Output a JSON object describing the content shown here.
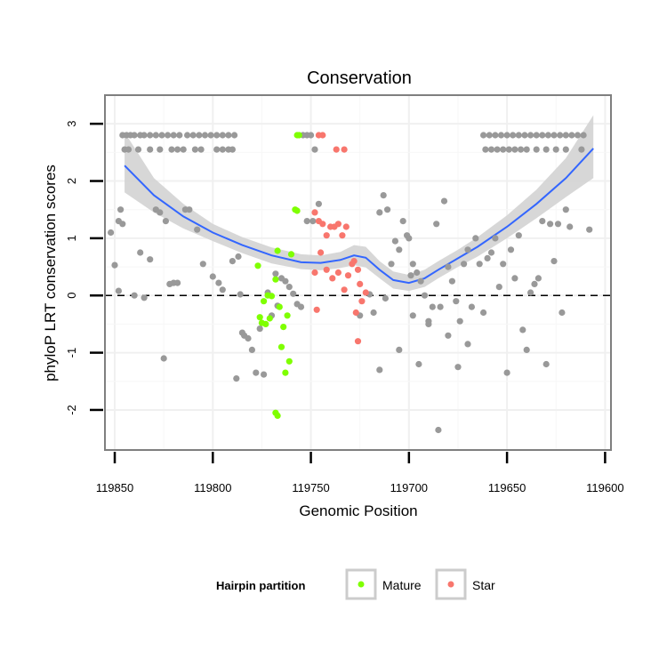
{
  "chart_data": {
    "type": "scatter",
    "title": "Conservation",
    "xlabel": "Genomic Position",
    "ylabel": "phyloP LRT conservation scores",
    "xlim": [
      119855,
      119597
    ],
    "ylim": [
      -2.7,
      3.5
    ],
    "x_reversed": true,
    "x_ticks": [
      119850,
      119800,
      119750,
      119700,
      119650,
      119600
    ],
    "y_ticks": [
      -2,
      -1,
      0,
      1,
      2,
      3
    ],
    "reference_line": {
      "y": 0,
      "style": "dashed"
    },
    "legend": {
      "title": "Hairpin partition",
      "position": "bottom",
      "entries": [
        {
          "label": "Mature",
          "color": "#7FFF00"
        },
        {
          "label": "Star",
          "color": "#F8766D"
        }
      ]
    },
    "colors": {
      "other": "#999999",
      "mature": "#7FFF00",
      "star": "#F8766D",
      "smooth": "#3366FF",
      "band": "#d3d3d3"
    },
    "smooth": {
      "x": [
        119845,
        119830,
        119815,
        119800,
        119785,
        119770,
        119755,
        119745,
        119735,
        119728,
        119722,
        119715,
        119708,
        119700,
        119692,
        119685,
        119675,
        119665,
        119650,
        119635,
        119620,
        119606
      ],
      "y": [
        2.27,
        1.75,
        1.38,
        1.1,
        0.88,
        0.7,
        0.58,
        0.57,
        0.62,
        0.7,
        0.66,
        0.45,
        0.27,
        0.22,
        0.3,
        0.45,
        0.65,
        0.85,
        1.2,
        1.6,
        2.05,
        2.57
      ],
      "lower": [
        1.8,
        1.45,
        1.17,
        0.95,
        0.74,
        0.56,
        0.46,
        0.44,
        0.48,
        0.53,
        0.49,
        0.3,
        0.12,
        0.08,
        0.15,
        0.3,
        0.5,
        0.68,
        1.0,
        1.35,
        1.72,
        2.05
      ],
      "upper": [
        2.85,
        2.05,
        1.6,
        1.25,
        1.02,
        0.84,
        0.72,
        0.7,
        0.76,
        0.88,
        0.85,
        0.6,
        0.42,
        0.36,
        0.45,
        0.6,
        0.8,
        1.02,
        1.4,
        1.85,
        2.4,
        3.15
      ]
    },
    "series": [
      {
        "name": "Other",
        "color": "#999999",
        "points": [
          [
            119846,
            2.8
          ],
          [
            119844,
            2.8
          ],
          [
            119842,
            2.8
          ],
          [
            119840,
            2.8
          ],
          [
            119837,
            2.8
          ],
          [
            119835,
            2.8
          ],
          [
            119832,
            2.8
          ],
          [
            119829,
            2.8
          ],
          [
            119826,
            2.8
          ],
          [
            119823,
            2.8
          ],
          [
            119820,
            2.8
          ],
          [
            119817,
            2.8
          ],
          [
            119813,
            2.8
          ],
          [
            119810,
            2.8
          ],
          [
            119807,
            2.8
          ],
          [
            119804,
            2.8
          ],
          [
            119801,
            2.8
          ],
          [
            119798,
            2.8
          ],
          [
            119795,
            2.8
          ],
          [
            119792,
            2.8
          ],
          [
            119789,
            2.8
          ],
          [
            119845,
            2.55
          ],
          [
            119843,
            2.55
          ],
          [
            119838,
            2.55
          ],
          [
            119832,
            2.55
          ],
          [
            119827,
            2.55
          ],
          [
            119821,
            2.55
          ],
          [
            119818,
            2.55
          ],
          [
            119815,
            2.55
          ],
          [
            119809,
            2.55
          ],
          [
            119806,
            2.55
          ],
          [
            119798,
            2.55
          ],
          [
            119795,
            2.55
          ],
          [
            119792,
            2.55
          ],
          [
            119790,
            2.55
          ],
          [
            119754,
            2.8
          ],
          [
            119752,
            2.8
          ],
          [
            119750,
            2.8
          ],
          [
            119748,
            2.55
          ],
          [
            119662,
            2.8
          ],
          [
            119659,
            2.8
          ],
          [
            119656,
            2.8
          ],
          [
            119653,
            2.8
          ],
          [
            119650,
            2.8
          ],
          [
            119647,
            2.8
          ],
          [
            119644,
            2.8
          ],
          [
            119641,
            2.8
          ],
          [
            119638,
            2.8
          ],
          [
            119635,
            2.8
          ],
          [
            119632,
            2.8
          ],
          [
            119629,
            2.8
          ],
          [
            119626,
            2.8
          ],
          [
            119623,
            2.8
          ],
          [
            119620,
            2.8
          ],
          [
            119617,
            2.8
          ],
          [
            119614,
            2.8
          ],
          [
            119611,
            2.8
          ],
          [
            119661,
            2.55
          ],
          [
            119658,
            2.55
          ],
          [
            119655,
            2.55
          ],
          [
            119652,
            2.55
          ],
          [
            119649,
            2.55
          ],
          [
            119646,
            2.55
          ],
          [
            119643,
            2.55
          ],
          [
            119640,
            2.55
          ],
          [
            119635,
            2.55
          ],
          [
            119630,
            2.55
          ],
          [
            119625,
            2.55
          ],
          [
            119620,
            2.55
          ],
          [
            119612,
            2.55
          ],
          [
            119850,
            0.53
          ],
          [
            119848,
            1.3
          ],
          [
            119847,
            1.5
          ],
          [
            119848,
            0.08
          ],
          [
            119846,
            1.25
          ],
          [
            119840,
            0.0
          ],
          [
            119837,
            0.75
          ],
          [
            119835,
            -0.04
          ],
          [
            119832,
            0.63
          ],
          [
            119829,
            1.5
          ],
          [
            119827,
            1.45
          ],
          [
            119824,
            1.3
          ],
          [
            119822,
            0.2
          ],
          [
            119820,
            0.22
          ],
          [
            119818,
            0.22
          ],
          [
            119814,
            1.5
          ],
          [
            119812,
            1.5
          ],
          [
            119808,
            1.15
          ],
          [
            119805,
            0.55
          ],
          [
            119800,
            0.33
          ],
          [
            119797,
            0.22
          ],
          [
            119795,
            0.1
          ],
          [
            119790,
            0.6
          ],
          [
            119787,
            0.68
          ],
          [
            119786,
            0.02
          ],
          [
            119785,
            -0.65
          ],
          [
            119784,
            -0.7
          ],
          [
            119782,
            -0.75
          ],
          [
            119780,
            -0.95
          ],
          [
            119778,
            -1.35
          ],
          [
            119776,
            -0.58
          ],
          [
            119774,
            -1.38
          ],
          [
            119772,
            0.05
          ],
          [
            119770,
            -0.35
          ],
          [
            119768,
            0.38
          ],
          [
            119767,
            -0.18
          ],
          [
            119765,
            0.3
          ],
          [
            119763,
            0.25
          ],
          [
            119761,
            0.15
          ],
          [
            119759,
            0.03
          ],
          [
            119757,
            -0.15
          ],
          [
            119755,
            -0.2
          ],
          [
            119852,
            1.1
          ],
          [
            119825,
            -1.1
          ],
          [
            119788,
            -1.45
          ],
          [
            119752,
            1.3
          ],
          [
            119749,
            1.3
          ],
          [
            119746,
            1.6
          ],
          [
            119718,
            -0.3
          ],
          [
            119715,
            1.45
          ],
          [
            119713,
            1.75
          ],
          [
            119711,
            1.5
          ],
          [
            119709,
            0.55
          ],
          [
            119707,
            0.95
          ],
          [
            119705,
            0.8
          ],
          [
            119703,
            1.3
          ],
          [
            119701,
            1.05
          ],
          [
            119700,
            1.0
          ],
          [
            119699,
            0.35
          ],
          [
            119698,
            0.55
          ],
          [
            119696,
            0.4
          ],
          [
            119694,
            0.25
          ],
          [
            119692,
            0.0
          ],
          [
            119690,
            -0.45
          ],
          [
            119688,
            -0.2
          ],
          [
            119686,
            1.25
          ],
          [
            119684,
            -0.2
          ],
          [
            119682,
            1.65
          ],
          [
            119680,
            0.5
          ],
          [
            119678,
            0.25
          ],
          [
            119676,
            -0.1
          ],
          [
            119674,
            -0.45
          ],
          [
            119672,
            0.55
          ],
          [
            119670,
            0.8
          ],
          [
            119668,
            -0.2
          ],
          [
            119666,
            1.0
          ],
          [
            119664,
            0.55
          ],
          [
            119662,
            -0.3
          ],
          [
            119660,
            0.65
          ],
          [
            119658,
            0.75
          ],
          [
            119656,
            1.0
          ],
          [
            119654,
            0.15
          ],
          [
            119652,
            0.55
          ],
          [
            119650,
            -1.35
          ],
          [
            119648,
            0.8
          ],
          [
            119646,
            0.3
          ],
          [
            119644,
            1.05
          ],
          [
            119642,
            -0.6
          ],
          [
            119640,
            -0.95
          ],
          [
            119638,
            0.05
          ],
          [
            119636,
            0.2
          ],
          [
            119634,
            0.3
          ],
          [
            119632,
            1.3
          ],
          [
            119630,
            -1.2
          ],
          [
            119628,
            1.25
          ],
          [
            119626,
            0.6
          ],
          [
            119624,
            1.25
          ],
          [
            119622,
            -0.3
          ],
          [
            119620,
            1.5
          ],
          [
            119618,
            1.2
          ],
          [
            119608,
            1.15
          ],
          [
            119715,
            -1.3
          ],
          [
            119705,
            -0.95
          ],
          [
            119695,
            -1.2
          ],
          [
            119685,
            -2.35
          ],
          [
            119675,
            -1.25
          ],
          [
            119670,
            -0.85
          ],
          [
            119725,
            -0.35
          ],
          [
            119720,
            0.02
          ],
          [
            119712,
            -0.05
          ],
          [
            119698,
            -0.35
          ],
          [
            119690,
            -0.5
          ],
          [
            119680,
            -0.7
          ]
        ]
      },
      {
        "name": "Mature",
        "color": "#7FFF00",
        "points": [
          [
            119757,
            2.8
          ],
          [
            119756,
            2.8
          ],
          [
            119777,
            0.52
          ],
          [
            119776,
            -0.38
          ],
          [
            119775,
            -0.48
          ],
          [
            119774,
            -0.1
          ],
          [
            119773,
            -0.5
          ],
          [
            119772,
            0.0
          ],
          [
            119771,
            -0.4
          ],
          [
            119770,
            -0.01
          ],
          [
            119768,
            0.28
          ],
          [
            119767,
            0.78
          ],
          [
            119766,
            -0.2
          ],
          [
            119765,
            -0.9
          ],
          [
            119764,
            -0.55
          ],
          [
            119763,
            -1.35
          ],
          [
            119762,
            -0.35
          ],
          [
            119761,
            -1.15
          ],
          [
            119760,
            0.72
          ],
          [
            119758,
            1.5
          ],
          [
            119757,
            1.48
          ],
          [
            119768,
            -2.05
          ],
          [
            119767,
            -2.1
          ]
        ]
      },
      {
        "name": "Star",
        "color": "#F8766D",
        "points": [
          [
            119746,
            2.8
          ],
          [
            119744,
            2.8
          ],
          [
            119737,
            2.55
          ],
          [
            119733,
            2.55
          ],
          [
            119748,
            1.45
          ],
          [
            119746,
            1.3
          ],
          [
            119744,
            1.25
          ],
          [
            119742,
            1.05
          ],
          [
            119740,
            1.2
          ],
          [
            119738,
            1.2
          ],
          [
            119736,
            1.25
          ],
          [
            119734,
            1.05
          ],
          [
            119732,
            1.2
          ],
          [
            119745,
            0.75
          ],
          [
            119748,
            0.4
          ],
          [
            119747,
            -0.25
          ],
          [
            119742,
            0.45
          ],
          [
            119739,
            0.3
          ],
          [
            119736,
            0.4
          ],
          [
            119733,
            0.1
          ],
          [
            119731,
            0.35
          ],
          [
            119729,
            0.55
          ],
          [
            119728,
            0.6
          ],
          [
            119727,
            -0.3
          ],
          [
            119726,
            0.45
          ],
          [
            119725,
            0.2
          ],
          [
            119724,
            -0.1
          ],
          [
            119722,
            0.05
          ],
          [
            119726,
            -0.8
          ]
        ]
      }
    ]
  }
}
